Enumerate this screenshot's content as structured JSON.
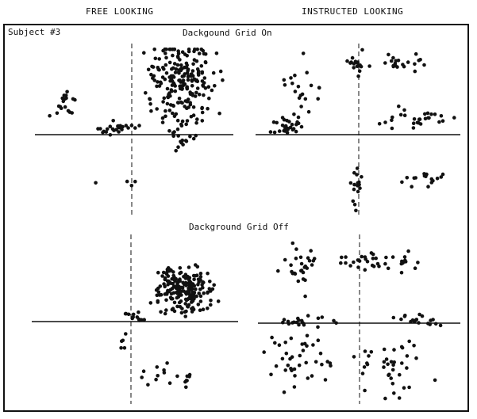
{
  "header": {
    "left": "FREE LOOKING",
    "right": "INSTRUCTED LOOKING"
  },
  "subject_label": "Subject #3",
  "row_titles": {
    "grid_on": "Dackgound Grid On",
    "grid_off": "Dackground Grid Off"
  },
  "chart_data": [
    {
      "type": "scatter",
      "title": "Dackgound Grid On",
      "column": "FREE LOOKING",
      "xlim": [
        -1,
        1
      ],
      "ylim": [
        -1,
        1
      ],
      "grid": false,
      "clusters": [
        {
          "cx": 0.5,
          "cy": 0.55,
          "sx": 0.2,
          "sy": 0.35,
          "n": 230
        },
        {
          "cx": -0.7,
          "cy": 0.32,
          "sx": 0.1,
          "sy": 0.1,
          "n": 18
        },
        {
          "cx": -0.15,
          "cy": 0.08,
          "sx": 0.15,
          "sy": 0.05,
          "n": 25
        },
        {
          "cx": 0.5,
          "cy": -0.1,
          "sx": 0.06,
          "sy": 0.04,
          "n": 5
        },
        {
          "cx": 0.0,
          "cy": -0.6,
          "sx": 0.25,
          "sy": 0.05,
          "n": 4
        }
      ]
    },
    {
      "type": "scatter",
      "title": "Dackgound Grid On",
      "column": "INSTRUCTED LOOKING",
      "xlim": [
        -1,
        1
      ],
      "ylim": [
        -1,
        1
      ],
      "grid": false,
      "clusters": [
        {
          "cx": -0.75,
          "cy": 0.08,
          "sx": 0.12,
          "sy": 0.07,
          "n": 26
        },
        {
          "cx": -0.55,
          "cy": 0.5,
          "sx": 0.15,
          "sy": 0.25,
          "n": 22
        },
        {
          "cx": -0.02,
          "cy": 0.8,
          "sx": 0.07,
          "sy": 0.08,
          "n": 18
        },
        {
          "cx": 0.45,
          "cy": 0.82,
          "sx": 0.13,
          "sy": 0.08,
          "n": 20
        },
        {
          "cx": 0.6,
          "cy": 0.2,
          "sx": 0.25,
          "sy": 0.1,
          "n": 28
        },
        {
          "cx": -0.02,
          "cy": -0.65,
          "sx": 0.03,
          "sy": 0.2,
          "n": 16
        },
        {
          "cx": 0.65,
          "cy": -0.55,
          "sx": 0.15,
          "sy": 0.08,
          "n": 16
        }
      ]
    },
    {
      "type": "scatter",
      "title": "Dackground Grid Off",
      "column": "FREE LOOKING",
      "xlim": [
        -1,
        1
      ],
      "ylim": [
        -1,
        1
      ],
      "grid": false,
      "clusters": [
        {
          "cx": 0.5,
          "cy": 0.38,
          "sx": 0.18,
          "sy": 0.2,
          "n": 200
        },
        {
          "cx": 0.05,
          "cy": 0.05,
          "sx": 0.06,
          "sy": 0.05,
          "n": 12
        },
        {
          "cx": -0.1,
          "cy": -0.25,
          "sx": 0.06,
          "sy": 0.1,
          "n": 5
        },
        {
          "cx": 0.35,
          "cy": -0.75,
          "sx": 0.2,
          "sy": 0.12,
          "n": 18
        }
      ]
    },
    {
      "type": "scatter",
      "title": "Dackground Grid Off",
      "column": "INSTRUCTED LOOKING",
      "xlim": [
        -1,
        1
      ],
      "ylim": [
        -1,
        1
      ],
      "grid": false,
      "clusters": [
        {
          "cx": -0.6,
          "cy": 0.65,
          "sx": 0.15,
          "sy": 0.2,
          "n": 28
        },
        {
          "cx": 0.05,
          "cy": 0.75,
          "sx": 0.15,
          "sy": 0.12,
          "n": 24
        },
        {
          "cx": 0.45,
          "cy": 0.7,
          "sx": 0.12,
          "sy": 0.1,
          "n": 12
        },
        {
          "cx": -0.6,
          "cy": 0.02,
          "sx": 0.25,
          "sy": 0.05,
          "n": 20
        },
        {
          "cx": 0.6,
          "cy": 0.05,
          "sx": 0.2,
          "sy": 0.06,
          "n": 18
        },
        {
          "cx": -0.6,
          "cy": -0.45,
          "sx": 0.25,
          "sy": 0.25,
          "n": 40
        },
        {
          "cx": 0.3,
          "cy": -0.55,
          "sx": 0.3,
          "sy": 0.25,
          "n": 38
        }
      ]
    }
  ]
}
